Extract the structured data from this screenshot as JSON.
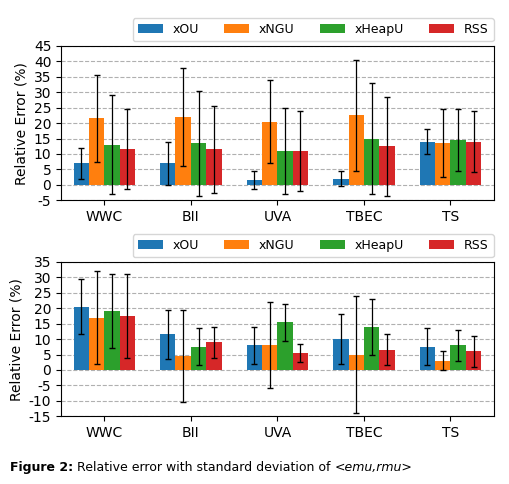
{
  "chart_data": [
    {
      "type": "bar",
      "categories": [
        "WWC",
        "BII",
        "UVA",
        "TBEC",
        "TS"
      ],
      "ylabel": "Relative Error (%)",
      "ylim": [
        -5,
        45
      ],
      "yticks": [
        -5,
        0,
        5,
        10,
        15,
        20,
        25,
        30,
        35,
        40,
        45
      ],
      "grid": true,
      "legend": "upper right",
      "series": [
        {
          "name": "xOU",
          "values": [
            7.0,
            7.0,
            1.5,
            2.0,
            14.0
          ],
          "errors": [
            5.0,
            7.0,
            3.0,
            2.5,
            4.0
          ]
        },
        {
          "name": "xNGU",
          "values": [
            21.5,
            22.0,
            20.5,
            22.5,
            13.5
          ],
          "errors": [
            14.0,
            16.0,
            13.5,
            18.0,
            11.0
          ]
        },
        {
          "name": "xHeapU",
          "values": [
            13.0,
            13.5,
            11.0,
            15.0,
            14.5
          ],
          "errors": [
            16.0,
            17.0,
            14.0,
            18.0,
            10.0
          ]
        },
        {
          "name": "RSS",
          "values": [
            11.5,
            11.5,
            11.0,
            12.5,
            14.0
          ],
          "errors": [
            13.0,
            14.0,
            13.0,
            16.0,
            10.0
          ]
        }
      ]
    },
    {
      "type": "bar",
      "categories": [
        "WWC",
        "BII",
        "UVA",
        "TBEC",
        "TS"
      ],
      "ylabel": "Relative Error (%)",
      "ylim": [
        -15,
        35
      ],
      "yticks": [
        -15,
        -10,
        -5,
        0,
        5,
        10,
        15,
        20,
        25,
        30,
        35
      ],
      "grid": true,
      "legend": "upper right",
      "series": [
        {
          "name": "xOU",
          "values": [
            20.5,
            11.5,
            8.0,
            10.0,
            7.5
          ],
          "errors": [
            9.0,
            8.0,
            6.0,
            8.0,
            6.0
          ]
        },
        {
          "name": "xNGU",
          "values": [
            17.0,
            4.5,
            8.0,
            5.0,
            3.0
          ],
          "errors": [
            15.0,
            15.0,
            14.0,
            19.0,
            3.0
          ]
        },
        {
          "name": "xHeapU",
          "values": [
            19.0,
            7.5,
            15.5,
            14.0,
            8.0
          ],
          "errors": [
            12.0,
            6.0,
            6.0,
            9.0,
            5.0
          ]
        },
        {
          "name": "RSS",
          "values": [
            17.5,
            9.0,
            5.5,
            6.5,
            6.0
          ],
          "errors": [
            13.5,
            5.0,
            3.0,
            5.0,
            5.0
          ]
        }
      ]
    }
  ],
  "caption": [
    "Figure 2:",
    " Relative error with standard deviation of ",
    "<emu,rmu>"
  ]
}
